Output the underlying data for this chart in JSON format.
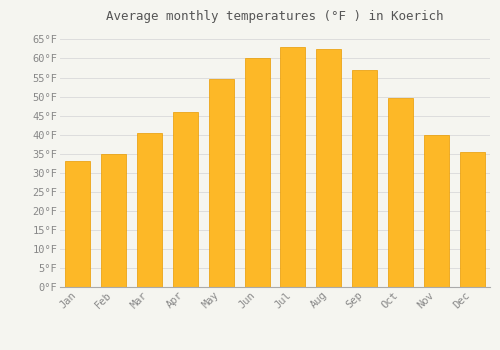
{
  "title": "Average monthly temperatures (°F ) in Koerich",
  "months": [
    "Jan",
    "Feb",
    "Mar",
    "Apr",
    "May",
    "Jun",
    "Jul",
    "Aug",
    "Sep",
    "Oct",
    "Nov",
    "Dec"
  ],
  "values": [
    33,
    35,
    40.5,
    46,
    54.5,
    60,
    63,
    62.5,
    57,
    49.5,
    40,
    35.5
  ],
  "bar_color": "#FDB827",
  "bar_edge_color": "#E89B00",
  "ylim": [
    0,
    68
  ],
  "yticks": [
    0,
    5,
    10,
    15,
    20,
    25,
    30,
    35,
    40,
    45,
    50,
    55,
    60,
    65
  ],
  "background_color": "#f5f5f0",
  "plot_bg_color": "#f5f5f0",
  "grid_color": "#dddddd",
  "title_fontsize": 9,
  "tick_fontsize": 7.5,
  "font_family": "monospace",
  "title_color": "#555555",
  "tick_color": "#888888"
}
